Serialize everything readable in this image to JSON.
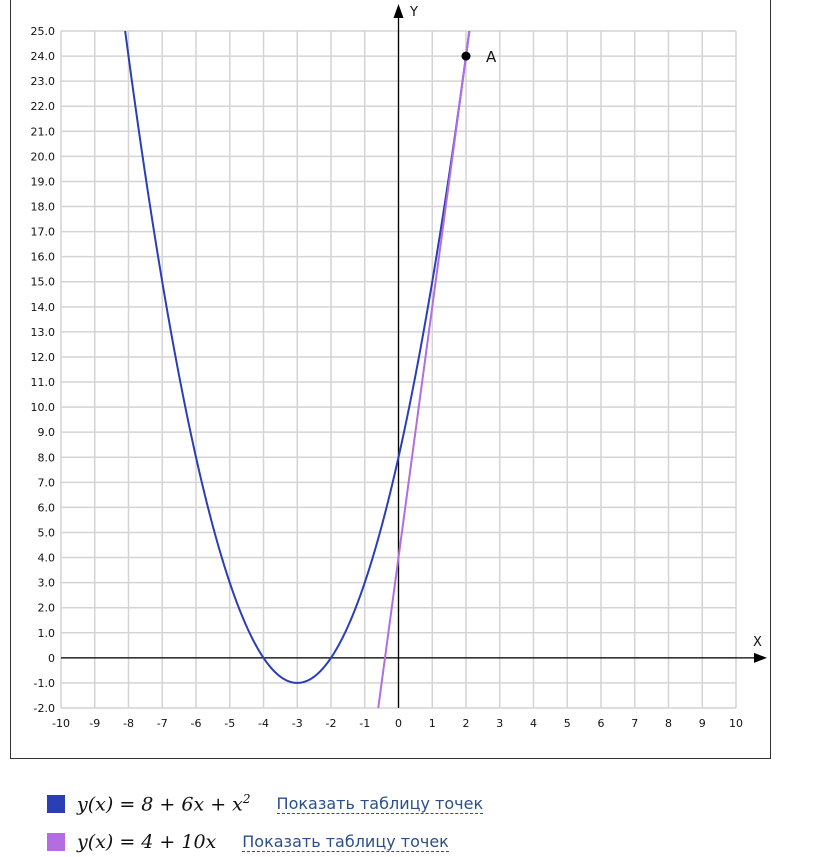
{
  "chart_data": {
    "type": "line",
    "xlabel": "X",
    "ylabel": "Y",
    "xlim": [
      -10,
      10
    ],
    "ylim": [
      -2,
      25
    ],
    "x_ticks": [
      "-10",
      "-9",
      "-8",
      "-7",
      "-6",
      "-5",
      "-4",
      "-3",
      "-2",
      "-1",
      "0",
      "1",
      "2",
      "3",
      "4",
      "5",
      "6",
      "7",
      "8",
      "9",
      "10"
    ],
    "y_ticks": [
      "-2.0",
      "-1.0",
      "0",
      "1.0",
      "2.0",
      "3.0",
      "4.0",
      "5.0",
      "6.0",
      "7.0",
      "8.0",
      "9.0",
      "10.0",
      "11.0",
      "12.0",
      "13.0",
      "14.0",
      "15.0",
      "16.0",
      "17.0",
      "18.0",
      "19.0",
      "20.0",
      "21.0",
      "22.0",
      "23.0",
      "24.0",
      "25.0"
    ],
    "grid": true,
    "series": [
      {
        "formula": "y(x) = 8 + 6x + x²",
        "coefficients": [
          8,
          6,
          1
        ],
        "color": "#2a3fb5"
      },
      {
        "formula": "y(x) = 4 + 10x",
        "coefficients": [
          4,
          10,
          0
        ],
        "color": "#b36de0"
      }
    ],
    "points": [
      {
        "label": "A",
        "x": 2,
        "y": 24
      }
    ]
  },
  "legend": [
    {
      "formula_main": "y(x) = 8 + 6x + x",
      "formula_sup": "2",
      "link": "Показать таблицу точек",
      "color": "#2a3fb5"
    },
    {
      "formula_main": "y(x) = 4 + 10x",
      "formula_sup": "",
      "link": "Показать таблицу точек",
      "color": "#b36de0"
    }
  ]
}
